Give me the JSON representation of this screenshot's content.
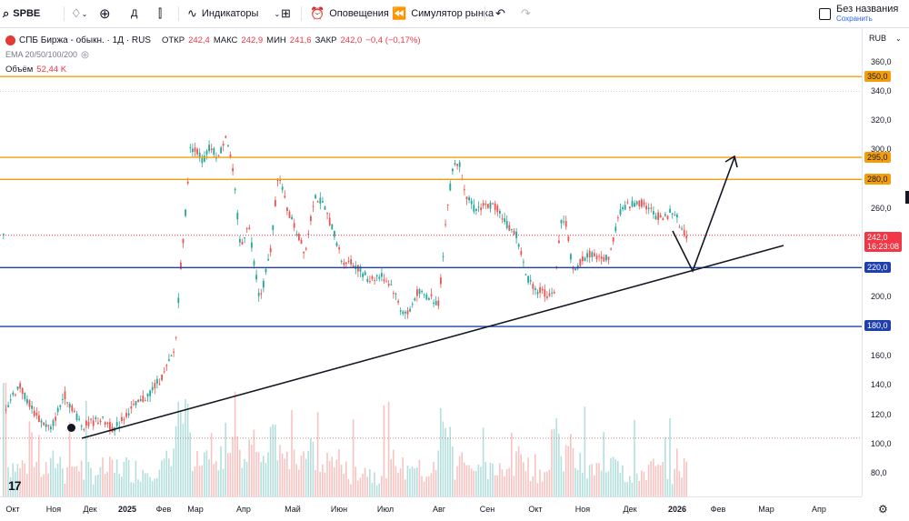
{
  "toolbar": {
    "symbol": "SPBE",
    "interval": "Д",
    "indicators": "Индикаторы",
    "alerts": "Оповещения",
    "replay": "Симулятор рынка",
    "layout_title": "Без названия",
    "save": "Сохранить"
  },
  "legend": {
    "name": "СПБ Биржа - обыкн. · 1Д · RUS",
    "open_k": "ОТКР",
    "open_v": "242,4",
    "high_k": "МАКС",
    "high_v": "242,9",
    "low_k": "МИН",
    "low_v": "241,6",
    "close_k": "ЗАКР",
    "close_v": "242,0",
    "change": "−0,4 (−0,17%)",
    "ema": "EMA 20/50/100/200",
    "volume_k": "Объём",
    "volume_v": "52,44 K"
  },
  "price_scale": {
    "currency": "RUB",
    "ticks": [
      "360,0",
      "340,0",
      "320,0",
      "300,0",
      "260,0",
      "200,0",
      "160,0",
      "140,0",
      "120,0",
      "100,0",
      "80,0"
    ],
    "levels": [
      {
        "label": "350,0",
        "style": "orange"
      },
      {
        "label": "295,0",
        "style": "orange"
      },
      {
        "label": "280,0",
        "style": "orange"
      },
      {
        "label": "220,0",
        "style": "blue"
      },
      {
        "label": "180,0",
        "style": "blue"
      }
    ],
    "last_price": "242,0",
    "countdown": "16:23:08"
  },
  "time_axis": [
    "Окт",
    "Ноя",
    "Дек",
    "2025",
    "Фев",
    "Мар",
    "Апр",
    "Май",
    "Июн",
    "Июл",
    "Авг",
    "Сен",
    "Окт",
    "Ноя",
    "Дек",
    "2026",
    "Фев",
    "Мар",
    "Апр"
  ],
  "tv_logo": "17",
  "colors": {
    "up": "#26a69a",
    "down": "#ef5350",
    "level_orange": "#f59e0b",
    "level_blue": "#1e40af"
  }
}
